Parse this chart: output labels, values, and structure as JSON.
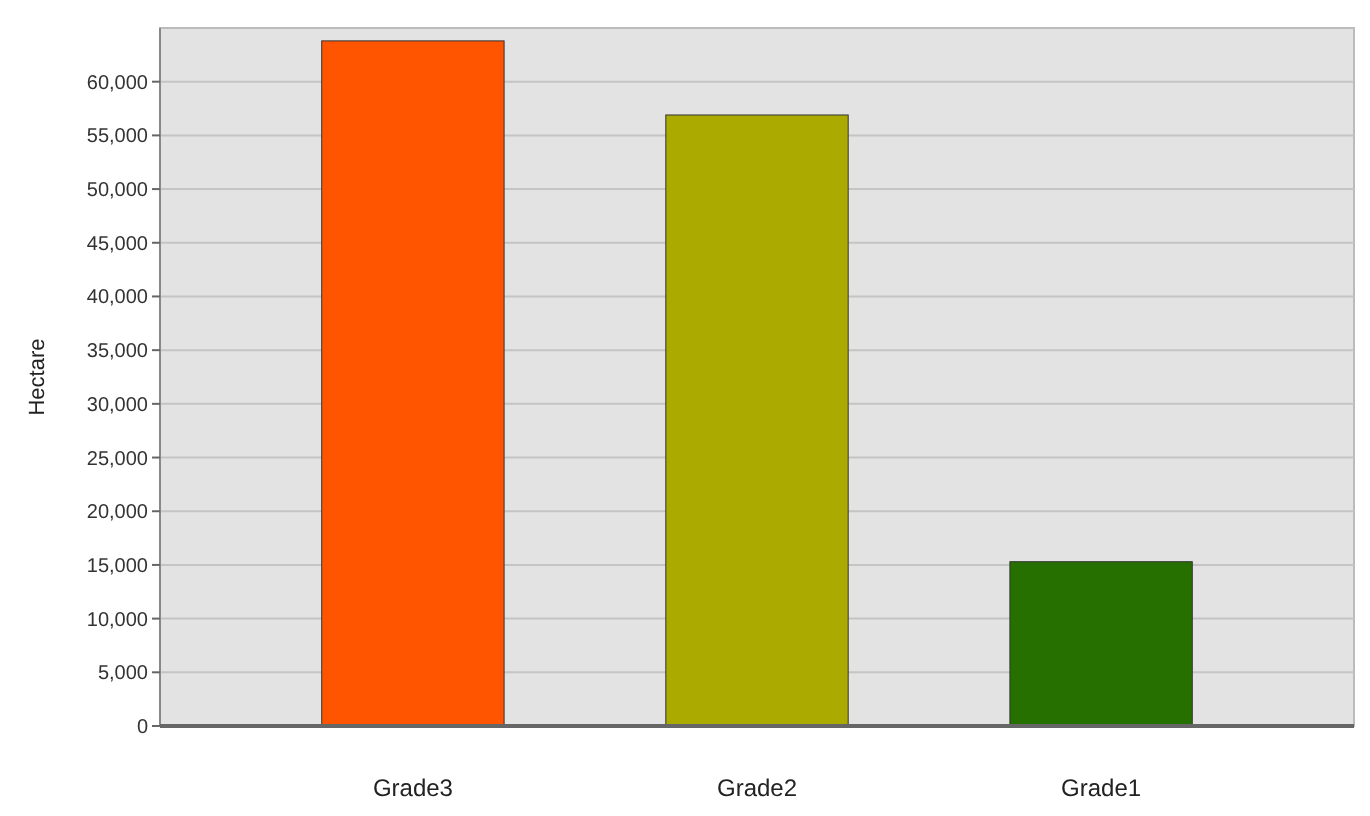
{
  "chart_data": {
    "type": "bar",
    "ylabel": "Hectare",
    "categories": [
      "Grade3",
      "Grade2",
      "Grade1"
    ],
    "values": [
      63800,
      56900,
      15300
    ],
    "colors": [
      "#ff5500",
      "#aaaa00",
      "#267000"
    ],
    "ylim": [
      0,
      65000
    ],
    "yticks": [
      {
        "value": 0,
        "label": "0"
      },
      {
        "value": 5000,
        "label": "5,000"
      },
      {
        "value": 10000,
        "label": "10,000"
      },
      {
        "value": 15000,
        "label": "15,000"
      },
      {
        "value": 20000,
        "label": "20,000"
      },
      {
        "value": 25000,
        "label": "25,000"
      },
      {
        "value": 30000,
        "label": "30,000"
      },
      {
        "value": 35000,
        "label": "35,000"
      },
      {
        "value": 40000,
        "label": "40,000"
      },
      {
        "value": 45000,
        "label": "45,000"
      },
      {
        "value": 50000,
        "label": "50,000"
      },
      {
        "value": 55000,
        "label": "55,000"
      },
      {
        "value": 60000,
        "label": "60,000"
      }
    ],
    "grid": "y"
  }
}
